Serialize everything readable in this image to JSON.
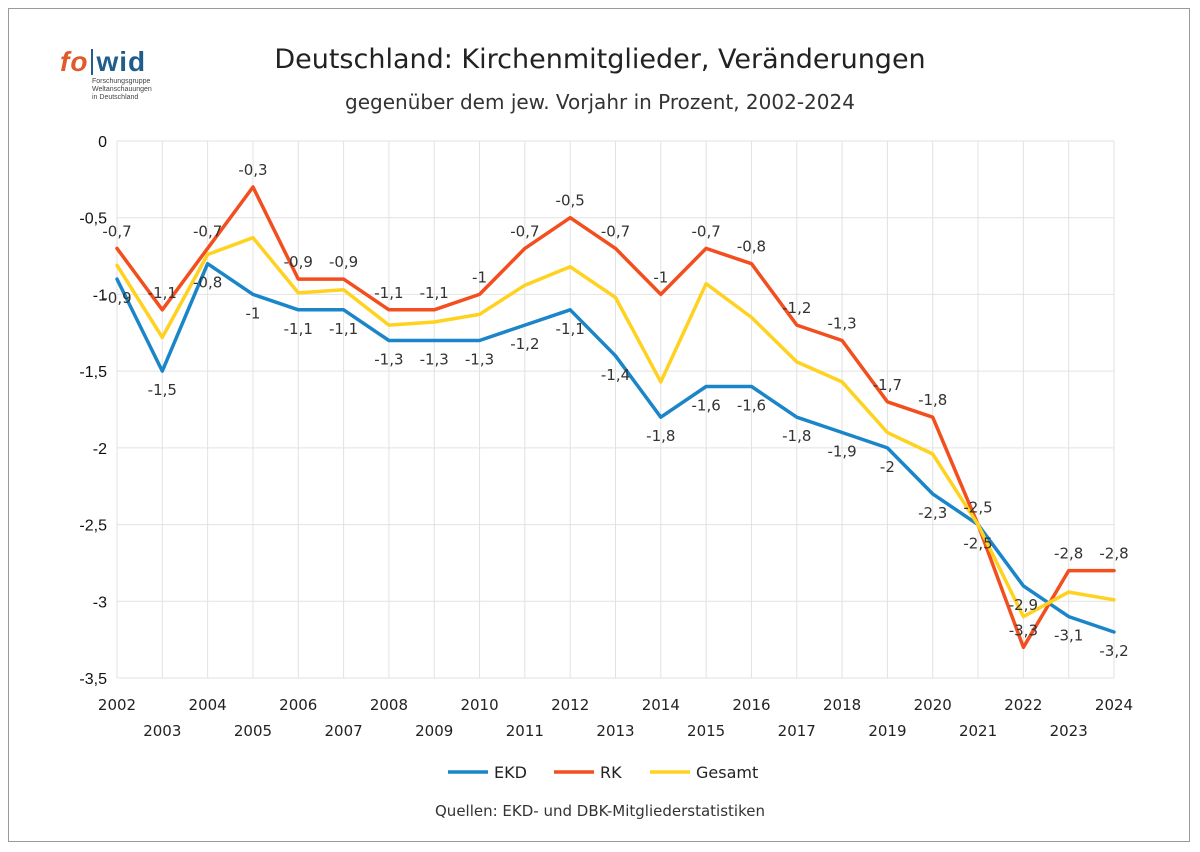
{
  "logo": {
    "word_left": "fo",
    "word_right": "wid",
    "sub_lines": [
      "Forschungsgruppe",
      "Weltanschauungen",
      "in Deutschland"
    ]
  },
  "source": "Quellen: EKD- und DBK-Mitgliederstatistiken",
  "chart_data": {
    "type": "line",
    "title": "Deutschland: Kirchenmitglieder, Veränderungen",
    "subtitle": "gegenüber dem jew. Vorjahr in Prozent, 2002-2024",
    "xlabel": "",
    "ylabel": "",
    "x": [
      "2002",
      "2003",
      "2004",
      "2005",
      "2006",
      "2007",
      "2008",
      "2009",
      "2010",
      "2011",
      "2012",
      "2013",
      "2014",
      "2015",
      "2016",
      "2017",
      "2018",
      "2019",
      "2020",
      "2021",
      "2022",
      "2023",
      "2024"
    ],
    "ylim": [
      -3.5,
      0
    ],
    "yticks": [
      0,
      -0.5,
      -1,
      -1.5,
      -2,
      -2.5,
      -3,
      -3.5
    ],
    "ytick_labels": [
      "0",
      "-0,5",
      "-1",
      "-1,5",
      "-2",
      "-2,5",
      "-3",
      "-3,5"
    ],
    "grid": true,
    "legend": "bottom",
    "series": [
      {
        "name": "EKD",
        "color": "#1a85c8",
        "values": [
          -0.9,
          -1.5,
          -0.8,
          -1,
          -1.1,
          -1.1,
          -1.3,
          -1.3,
          -1.3,
          -1.2,
          -1.1,
          -1.4,
          -1.8,
          -1.6,
          -1.6,
          -1.8,
          -1.9,
          -2,
          -2.3,
          -2.5,
          -2.9,
          -3.1,
          -3.2
        ],
        "labels": [
          "-0,9",
          "-1,5",
          "-0,8",
          "-1",
          "-1,1",
          "-1,1",
          "-1,3",
          "-1,3",
          "-1,3",
          "-1,2",
          "-1,1",
          "-1,4",
          "-1,8",
          "-1,6",
          "-1,6",
          "-1,8",
          "-1,9",
          "-2",
          "-2,3",
          "-2,5",
          "-2,9",
          "-3,1",
          "-3,2"
        ]
      },
      {
        "name": "RK",
        "color": "#f24e1e",
        "values": [
          -0.7,
          -1.1,
          -0.7,
          -0.3,
          -0.9,
          -0.9,
          -1.1,
          -1.1,
          -1,
          -0.7,
          -0.5,
          -0.7,
          -1,
          -0.7,
          -0.8,
          -1.2,
          -1.3,
          -1.7,
          -1.8,
          -2.5,
          -3.3,
          -2.8,
          -2.8
        ],
        "labels": [
          "-0,7",
          "-1,1",
          "-0,7",
          "-0,3",
          "-0,9",
          "-0,9",
          "-1,1",
          "-1,1",
          "-1",
          "-0,7",
          "-0,5",
          "-0,7",
          "-1",
          "-0,7",
          "-0,8",
          "-1,2",
          "-1,3",
          "-1,7",
          "-1,8",
          "-2,5",
          "-3,3",
          "-2,8",
          "-2,8"
        ]
      },
      {
        "name": "Gesamt",
        "color": "#ffd21f",
        "values": [
          -0.81,
          -1.28,
          -0.74,
          -0.63,
          -0.99,
          -0.97,
          -1.2,
          -1.18,
          -1.13,
          -0.94,
          -0.82,
          -1.02,
          -1.57,
          -0.93,
          -1.15,
          -1.44,
          -1.57,
          -1.9,
          -2.04,
          -2.5,
          -3.1,
          -2.94,
          -2.99
        ]
      }
    ]
  }
}
